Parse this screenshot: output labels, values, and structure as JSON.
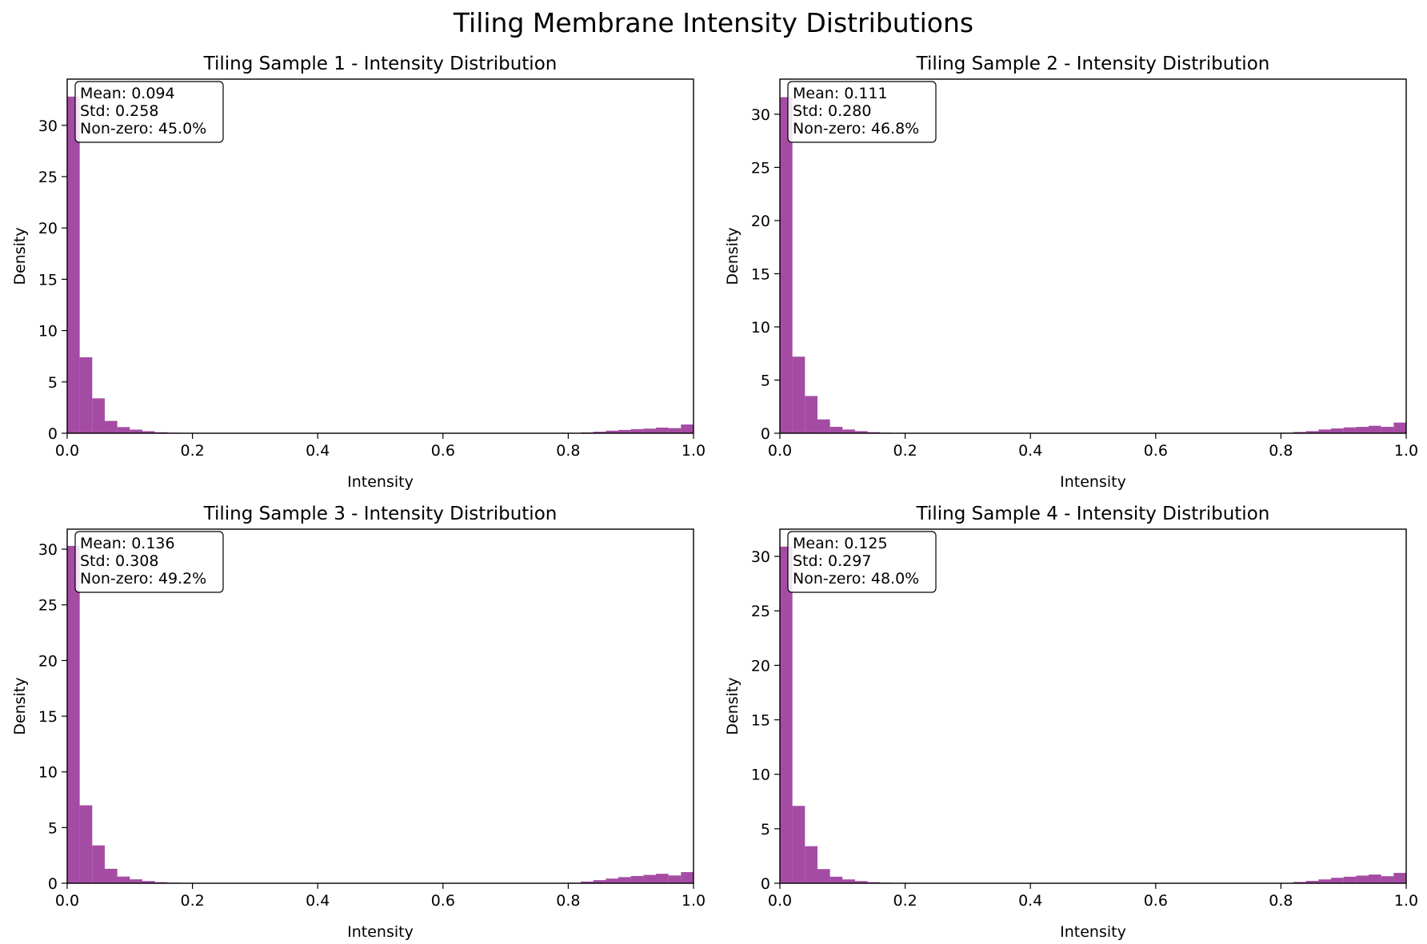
{
  "figure": {
    "suptitle": "Tiling Membrane Intensity Distributions"
  },
  "chart_data": [
    {
      "type": "bar",
      "title": "Tiling Sample 1 - Intensity Distribution",
      "xlabel": "Intensity",
      "ylabel": "Density",
      "xlim": [
        0,
        1
      ],
      "ylim": [
        0,
        34.5
      ],
      "xticks": [
        "0.0",
        "0.2",
        "0.4",
        "0.6",
        "0.8",
        "1.0"
      ],
      "yticks": [
        "0",
        "5",
        "10",
        "15",
        "20",
        "25",
        "30"
      ],
      "bin_width": 0.02,
      "values": [
        32.8,
        7.4,
        3.4,
        1.2,
        0.6,
        0.35,
        0.2,
        0.1,
        0.05,
        0.03,
        0.02,
        0.01,
        0.01,
        0.01,
        0.01,
        0.01,
        0.01,
        0.01,
        0.01,
        0.01,
        0.01,
        0.01,
        0.01,
        0.01,
        0.01,
        0.01,
        0.01,
        0.01,
        0.01,
        0.01,
        0.01,
        0.01,
        0.01,
        0.01,
        0.01,
        0.01,
        0.01,
        0.01,
        0.01,
        0.01,
        0.03,
        0.08,
        0.15,
        0.25,
        0.32,
        0.4,
        0.45,
        0.55,
        0.5,
        0.85
      ],
      "stats": {
        "mean": "Mean: 0.094",
        "std": "Std: 0.258",
        "nonzero": "Non-zero: 45.0%"
      },
      "color": "#8b1a8b"
    },
    {
      "type": "bar",
      "title": "Tiling Sample 2 - Intensity Distribution",
      "xlabel": "Intensity",
      "ylabel": "Density",
      "xlim": [
        0,
        1
      ],
      "ylim": [
        0,
        33.3
      ],
      "xticks": [
        "0.0",
        "0.2",
        "0.4",
        "0.6",
        "0.8",
        "1.0"
      ],
      "yticks": [
        "0",
        "5",
        "10",
        "15",
        "20",
        "25",
        "30"
      ],
      "bin_width": 0.02,
      "values": [
        31.6,
        7.2,
        3.5,
        1.3,
        0.6,
        0.35,
        0.2,
        0.1,
        0.05,
        0.03,
        0.02,
        0.01,
        0.01,
        0.01,
        0.01,
        0.01,
        0.01,
        0.01,
        0.01,
        0.01,
        0.01,
        0.01,
        0.01,
        0.01,
        0.01,
        0.01,
        0.01,
        0.01,
        0.01,
        0.01,
        0.01,
        0.01,
        0.01,
        0.01,
        0.01,
        0.01,
        0.01,
        0.01,
        0.01,
        0.01,
        0.05,
        0.12,
        0.2,
        0.35,
        0.45,
        0.55,
        0.6,
        0.7,
        0.6,
        1.0
      ],
      "stats": {
        "mean": "Mean: 0.111",
        "std": "Std: 0.280",
        "nonzero": "Non-zero: 46.8%"
      },
      "color": "#8b1a8b"
    },
    {
      "type": "bar",
      "title": "Tiling Sample 3 - Intensity Distribution",
      "xlabel": "Intensity",
      "ylabel": "Density",
      "xlim": [
        0,
        1
      ],
      "ylim": [
        0,
        31.8
      ],
      "xticks": [
        "0.0",
        "0.2",
        "0.4",
        "0.6",
        "0.8",
        "1.0"
      ],
      "yticks": [
        "0",
        "5",
        "10",
        "15",
        "20",
        "25",
        "30"
      ],
      "bin_width": 0.02,
      "values": [
        30.3,
        7.0,
        3.4,
        1.3,
        0.6,
        0.35,
        0.2,
        0.1,
        0.05,
        0.03,
        0.02,
        0.01,
        0.01,
        0.01,
        0.01,
        0.01,
        0.01,
        0.01,
        0.01,
        0.01,
        0.01,
        0.01,
        0.01,
        0.01,
        0.01,
        0.01,
        0.01,
        0.01,
        0.01,
        0.01,
        0.01,
        0.01,
        0.01,
        0.01,
        0.01,
        0.01,
        0.01,
        0.01,
        0.01,
        0.01,
        0.05,
        0.15,
        0.28,
        0.42,
        0.55,
        0.65,
        0.75,
        0.85,
        0.7,
        1.0
      ],
      "stats": {
        "mean": "Mean: 0.136",
        "std": "Std: 0.308",
        "nonzero": "Non-zero: 49.2%"
      },
      "color": "#8b1a8b"
    },
    {
      "type": "bar",
      "title": "Tiling Sample 4 - Intensity Distribution",
      "xlabel": "Intensity",
      "ylabel": "Density",
      "xlim": [
        0,
        1
      ],
      "ylim": [
        0,
        32.5
      ],
      "xticks": [
        "0.0",
        "0.2",
        "0.4",
        "0.6",
        "0.8",
        "1.0"
      ],
      "yticks": [
        "0",
        "5",
        "10",
        "15",
        "20",
        "25",
        "30"
      ],
      "bin_width": 0.02,
      "values": [
        30.9,
        7.1,
        3.4,
        1.3,
        0.6,
        0.35,
        0.2,
        0.1,
        0.05,
        0.03,
        0.02,
        0.01,
        0.01,
        0.01,
        0.01,
        0.01,
        0.01,
        0.01,
        0.01,
        0.01,
        0.01,
        0.01,
        0.01,
        0.01,
        0.01,
        0.01,
        0.01,
        0.01,
        0.01,
        0.01,
        0.01,
        0.01,
        0.01,
        0.01,
        0.01,
        0.01,
        0.01,
        0.01,
        0.01,
        0.01,
        0.03,
        0.12,
        0.22,
        0.35,
        0.5,
        0.6,
        0.7,
        0.8,
        0.65,
        0.95
      ],
      "stats": {
        "mean": "Mean: 0.125",
        "std": "Std: 0.297",
        "nonzero": "Non-zero: 48.0%"
      },
      "color": "#8b1a8b"
    }
  ]
}
